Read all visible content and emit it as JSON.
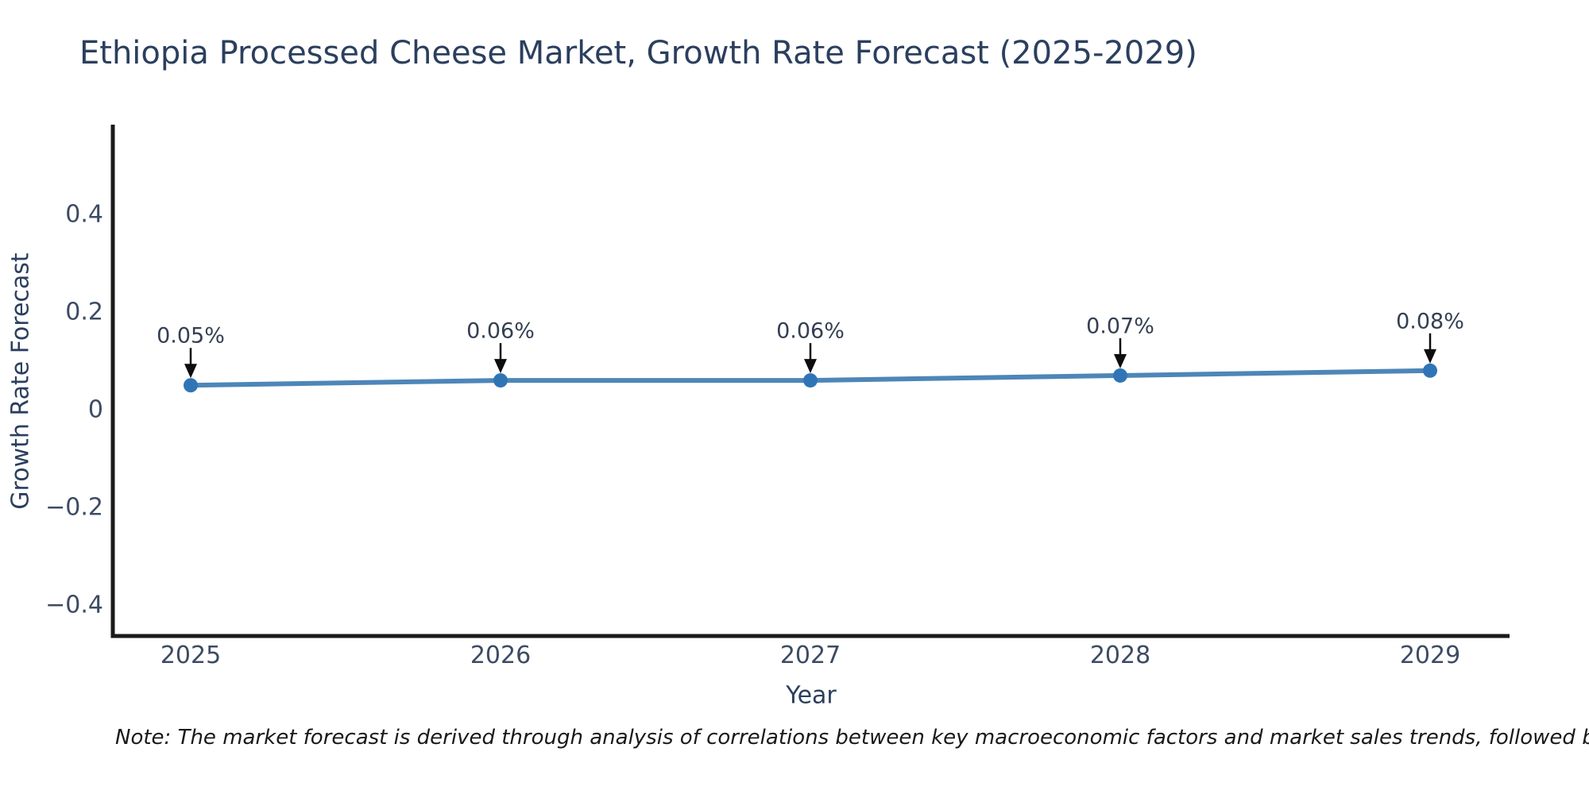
{
  "title": "Ethiopia Processed Cheese Market, Growth Rate Forecast (2025-2029)",
  "note": "Note: The market forecast is derived through analysis of correlations between key macroeconomic factors and market sales trends, followed by predictive modeling to project future sales",
  "chart_data": {
    "type": "line",
    "title": "Ethiopia Processed Cheese Market, Growth Rate Forecast (2025-2029)",
    "xlabel": "Year",
    "ylabel": "Growth Rate Forecast",
    "x": [
      2025,
      2026,
      2027,
      2028,
      2029
    ],
    "series": [
      {
        "name": "Growth Rate Forecast",
        "values": [
          0.05,
          0.06,
          0.06,
          0.07,
          0.08
        ],
        "point_labels": [
          "0.05%",
          "0.06%",
          "0.06%",
          "0.07%",
          "0.08%"
        ]
      }
    ],
    "xtick_labels": [
      "2025",
      "2026",
      "2027",
      "2028",
      "2029"
    ],
    "yticks": [
      0.4,
      0.2,
      0,
      -0.2,
      -0.4
    ],
    "ytick_labels": [
      "0.4",
      "0.2",
      "0",
      "−0.2",
      "−0.4"
    ],
    "ylim": [
      -0.465,
      0.575
    ],
    "grid": false,
    "legend_position": "none",
    "annotation_arrows": true,
    "colors": {
      "line": "#4d86b8",
      "marker": "#2f75b6",
      "axis": "#1a1a1a",
      "arrow": "#0d0d0d"
    }
  }
}
